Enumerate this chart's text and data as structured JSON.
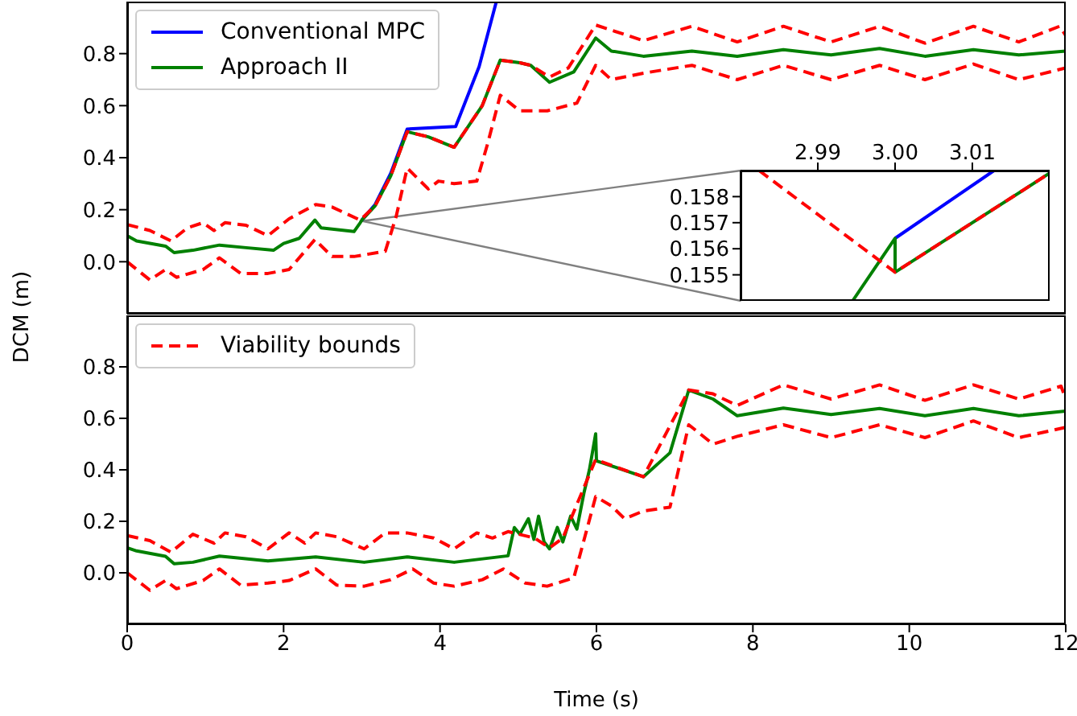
{
  "chart_data": [
    {
      "type": "line",
      "ylabel": "DCM (m)",
      "legend": "top left",
      "tick_labels": "y",
      "xlim": [
        0,
        12
      ],
      "xticks": [
        0,
        2,
        4,
        6,
        8,
        10,
        12
      ],
      "ylim": [
        -0.2,
        1.0
      ],
      "yticks": [
        {
          "value": 0,
          "label": "0.0"
        },
        {
          "value": 0.2,
          "label": "0.2"
        },
        {
          "value": 0.4,
          "label": "0.4"
        },
        {
          "value": 0.6,
          "label": "0.6"
        },
        {
          "value": 0.8,
          "label": "0.8"
        }
      ],
      "series": [
        {
          "name": "Conventional MPC",
          "color": "#0000ff",
          "line_style": "solid",
          "x": [
            3.0,
            3.17,
            3.37,
            3.58,
            4.2,
            4.5,
            4.72
          ],
          "values": [
            0.16,
            0.22,
            0.34,
            0.51,
            0.52,
            0.75,
            1.0
          ]
        },
        {
          "name": "Approach II",
          "color": "#008000",
          "line_style": "solid",
          "x": [
            0,
            0.12,
            0.49,
            0.6,
            0.84,
            1.18,
            1.52,
            1.87,
            2.0,
            2.2,
            2.4,
            2.48,
            2.9,
            2.98,
            3.0,
            3.17,
            3.37,
            3.58,
            3.85,
            4.18,
            4.54,
            4.77,
            5.02,
            5.16,
            5.4,
            5.71,
            5.99,
            6.19,
            6.6,
            7.22,
            7.8,
            8.39,
            9.0,
            9.62,
            10.2,
            10.82,
            11.4,
            12
          ],
          "values": [
            0.1,
            0.08,
            0.06,
            0.035,
            0.044,
            0.064,
            0.054,
            0.044,
            0.07,
            0.09,
            0.16,
            0.13,
            0.116,
            0.15,
            0.16,
            0.215,
            0.33,
            0.5,
            0.48,
            0.44,
            0.6,
            0.775,
            0.765,
            0.755,
            0.69,
            0.73,
            0.86,
            0.81,
            0.79,
            0.81,
            0.79,
            0.815,
            0.795,
            0.82,
            0.79,
            0.815,
            0.795,
            0.81
          ]
        },
        {
          "color": "#ff0000",
          "line_style": "dashed",
          "x": [
            0,
            0.29,
            0.56,
            0.77,
            0.97,
            1.11,
            1.25,
            1.52,
            1.8,
            2.07,
            2.41,
            2.62,
            2.98,
            3.17,
            3.37,
            3.58,
            3.85,
            4.18,
            4.54,
            4.77,
            5.02,
            5.16,
            5.4,
            5.64,
            5.99,
            6.6,
            7.22,
            7.8,
            8.39,
            9.0,
            9.62,
            10.2,
            10.82,
            11.4,
            11.92,
            12
          ],
          "values": [
            0.143,
            0.12,
            0.08,
            0.13,
            0.15,
            0.12,
            0.15,
            0.14,
            0.1,
            0.165,
            0.22,
            0.21,
            0.16,
            0.215,
            0.33,
            0.5,
            0.48,
            0.44,
            0.6,
            0.775,
            0.765,
            0.755,
            0.71,
            0.745,
            0.91,
            0.85,
            0.905,
            0.845,
            0.905,
            0.845,
            0.905,
            0.84,
            0.905,
            0.845,
            0.905,
            0.87
          ]
        },
        {
          "color": "#ff0000",
          "line_style": "dashed",
          "x": [
            0,
            0.29,
            0.49,
            0.63,
            0.97,
            1.18,
            1.45,
            1.8,
            2.07,
            2.4,
            2.62,
            2.9,
            3.3,
            3.44,
            3.58,
            3.85,
            3.98,
            4.18,
            4.47,
            4.61,
            4.77,
            5.02,
            5.37,
            5.75,
            5.99,
            6.19,
            6.6,
            7.22,
            7.8,
            8.39,
            9.0,
            9.62,
            10.2,
            10.82,
            11.4,
            12
          ],
          "values": [
            0,
            -0.07,
            -0.03,
            -0.06,
            -0.03,
            0.015,
            -0.045,
            -0.045,
            -0.03,
            0.085,
            0.02,
            0.02,
            0.04,
            0.175,
            0.36,
            0.28,
            0.31,
            0.3,
            0.31,
            0.455,
            0.64,
            0.58,
            0.58,
            0.61,
            0.755,
            0.7,
            0.725,
            0.755,
            0.7,
            0.755,
            0.7,
            0.755,
            0.7,
            0.76,
            0.7,
            0.745
          ]
        }
      ]
    },
    {
      "type": "line",
      "xlim": [
        2.98,
        3.02
      ],
      "xticks": [
        {
          "value": 2.99,
          "label": "2.99"
        },
        {
          "value": 3.0,
          "label": "3.00"
        },
        {
          "value": 3.01,
          "label": "3.01"
        }
      ],
      "ylim": [
        0.154,
        0.159
      ],
      "yticks": [
        0.155,
        0.156,
        0.157,
        0.158
      ],
      "series": [
        {
          "color": "#0000ff",
          "line_style": "solid",
          "x": [
            3.0,
            3.0128
          ],
          "values": [
            0.1564,
            0.159
          ]
        },
        {
          "color": "#008000",
          "line_style": "solid",
          "x": [
            2.9945,
            3.0,
            3.0,
            3.02
          ],
          "values": [
            0.154,
            0.1564,
            0.1551,
            0.1589
          ]
        },
        {
          "color": "#ff0000",
          "line_style": "dashed",
          "x": [
            2.9824,
            3.0,
            3.02
          ],
          "values": [
            0.159,
            0.1551,
            0.1589
          ]
        }
      ]
    },
    {
      "type": "line",
      "xlabel": "Time (s)",
      "legend": "top left",
      "xlim": [
        0,
        12
      ],
      "xticks": [
        0,
        2,
        4,
        6,
        8,
        10,
        12
      ],
      "ylim": [
        -0.2,
        1.0
      ],
      "yticks": [
        {
          "value": 0,
          "label": "0.0"
        },
        {
          "value": 0.2,
          "label": "0.2"
        },
        {
          "value": 0.4,
          "label": "0.4"
        },
        {
          "value": 0.6,
          "label": "0.6"
        },
        {
          "value": 0.8,
          "label": "0.8"
        }
      ],
      "series": [
        {
          "color": "#008000",
          "line_style": "solid",
          "x": [
            0,
            0.12,
            0.49,
            0.6,
            0.84,
            1.18,
            1.8,
            2.41,
            3.03,
            3.58,
            4.18,
            4.87,
            4.95,
            5.02,
            5.13,
            5.2,
            5.26,
            5.33,
            5.4,
            5.5,
            5.57,
            5.67,
            5.75,
            5.84,
            5.91,
            5.99,
            6.0,
            6.6,
            6.94,
            7.18,
            7.49,
            7.8,
            8.39,
            9.0,
            9.62,
            10.2,
            10.82,
            11.4,
            12
          ],
          "values": [
            0.097,
            0.085,
            0.064,
            0.035,
            0.041,
            0.065,
            0.046,
            0.062,
            0.041,
            0.062,
            0.041,
            0.066,
            0.176,
            0.15,
            0.21,
            0.13,
            0.22,
            0.12,
            0.093,
            0.176,
            0.12,
            0.22,
            0.17,
            0.31,
            0.4,
            0.54,
            0.435,
            0.373,
            0.466,
            0.71,
            0.675,
            0.61,
            0.64,
            0.615,
            0.638,
            0.61,
            0.638,
            0.61,
            0.628
          ]
        },
        {
          "name": "Viability bounds",
          "color": "#ff0000",
          "line_style": "dashed",
          "x": [
            0,
            0.29,
            0.56,
            0.84,
            1.11,
            1.25,
            1.52,
            1.8,
            2.07,
            2.27,
            2.41,
            2.68,
            3.03,
            3.3,
            3.58,
            3.92,
            4.18,
            4.47,
            4.67,
            4.87,
            5.21,
            5.4,
            5.57,
            5.99,
            6.6,
            7.18,
            7.49,
            7.8,
            8.39,
            9.0,
            9.62,
            10.2,
            10.82,
            11.4,
            11.94,
            12
          ],
          "values": [
            0.145,
            0.125,
            0.08,
            0.15,
            0.115,
            0.155,
            0.14,
            0.093,
            0.155,
            0.115,
            0.155,
            0.14,
            0.093,
            0.155,
            0.155,
            0.135,
            0.093,
            0.155,
            0.135,
            0.16,
            0.135,
            0.097,
            0.135,
            0.44,
            0.373,
            0.71,
            0.695,
            0.65,
            0.73,
            0.675,
            0.73,
            0.67,
            0.73,
            0.675,
            0.725,
            0.675
          ]
        },
        {
          "color": "#ff0000",
          "line_style": "dashed",
          "x": [
            0,
            0.29,
            0.49,
            0.63,
            0.97,
            1.18,
            1.45,
            1.8,
            2.07,
            2.41,
            2.68,
            3.03,
            3.37,
            3.65,
            3.92,
            4.18,
            4.54,
            4.81,
            5.09,
            5.37,
            5.71,
            5.99,
            6.19,
            6.36,
            6.6,
            6.94,
            7.18,
            7.49,
            7.8,
            8.39,
            9.0,
            9.62,
            10.2,
            10.82,
            11.4,
            12
          ],
          "values": [
            0,
            -0.068,
            -0.03,
            -0.062,
            -0.03,
            0.015,
            -0.048,
            -0.04,
            -0.03,
            0.015,
            -0.048,
            -0.052,
            -0.027,
            0.015,
            -0.04,
            -0.052,
            -0.027,
            0.015,
            -0.04,
            -0.052,
            -0.02,
            0.296,
            0.26,
            0.21,
            0.24,
            0.255,
            0.575,
            0.5,
            0.53,
            0.575,
            0.525,
            0.575,
            0.525,
            0.59,
            0.525,
            0.565
          ]
        }
      ]
    }
  ]
}
